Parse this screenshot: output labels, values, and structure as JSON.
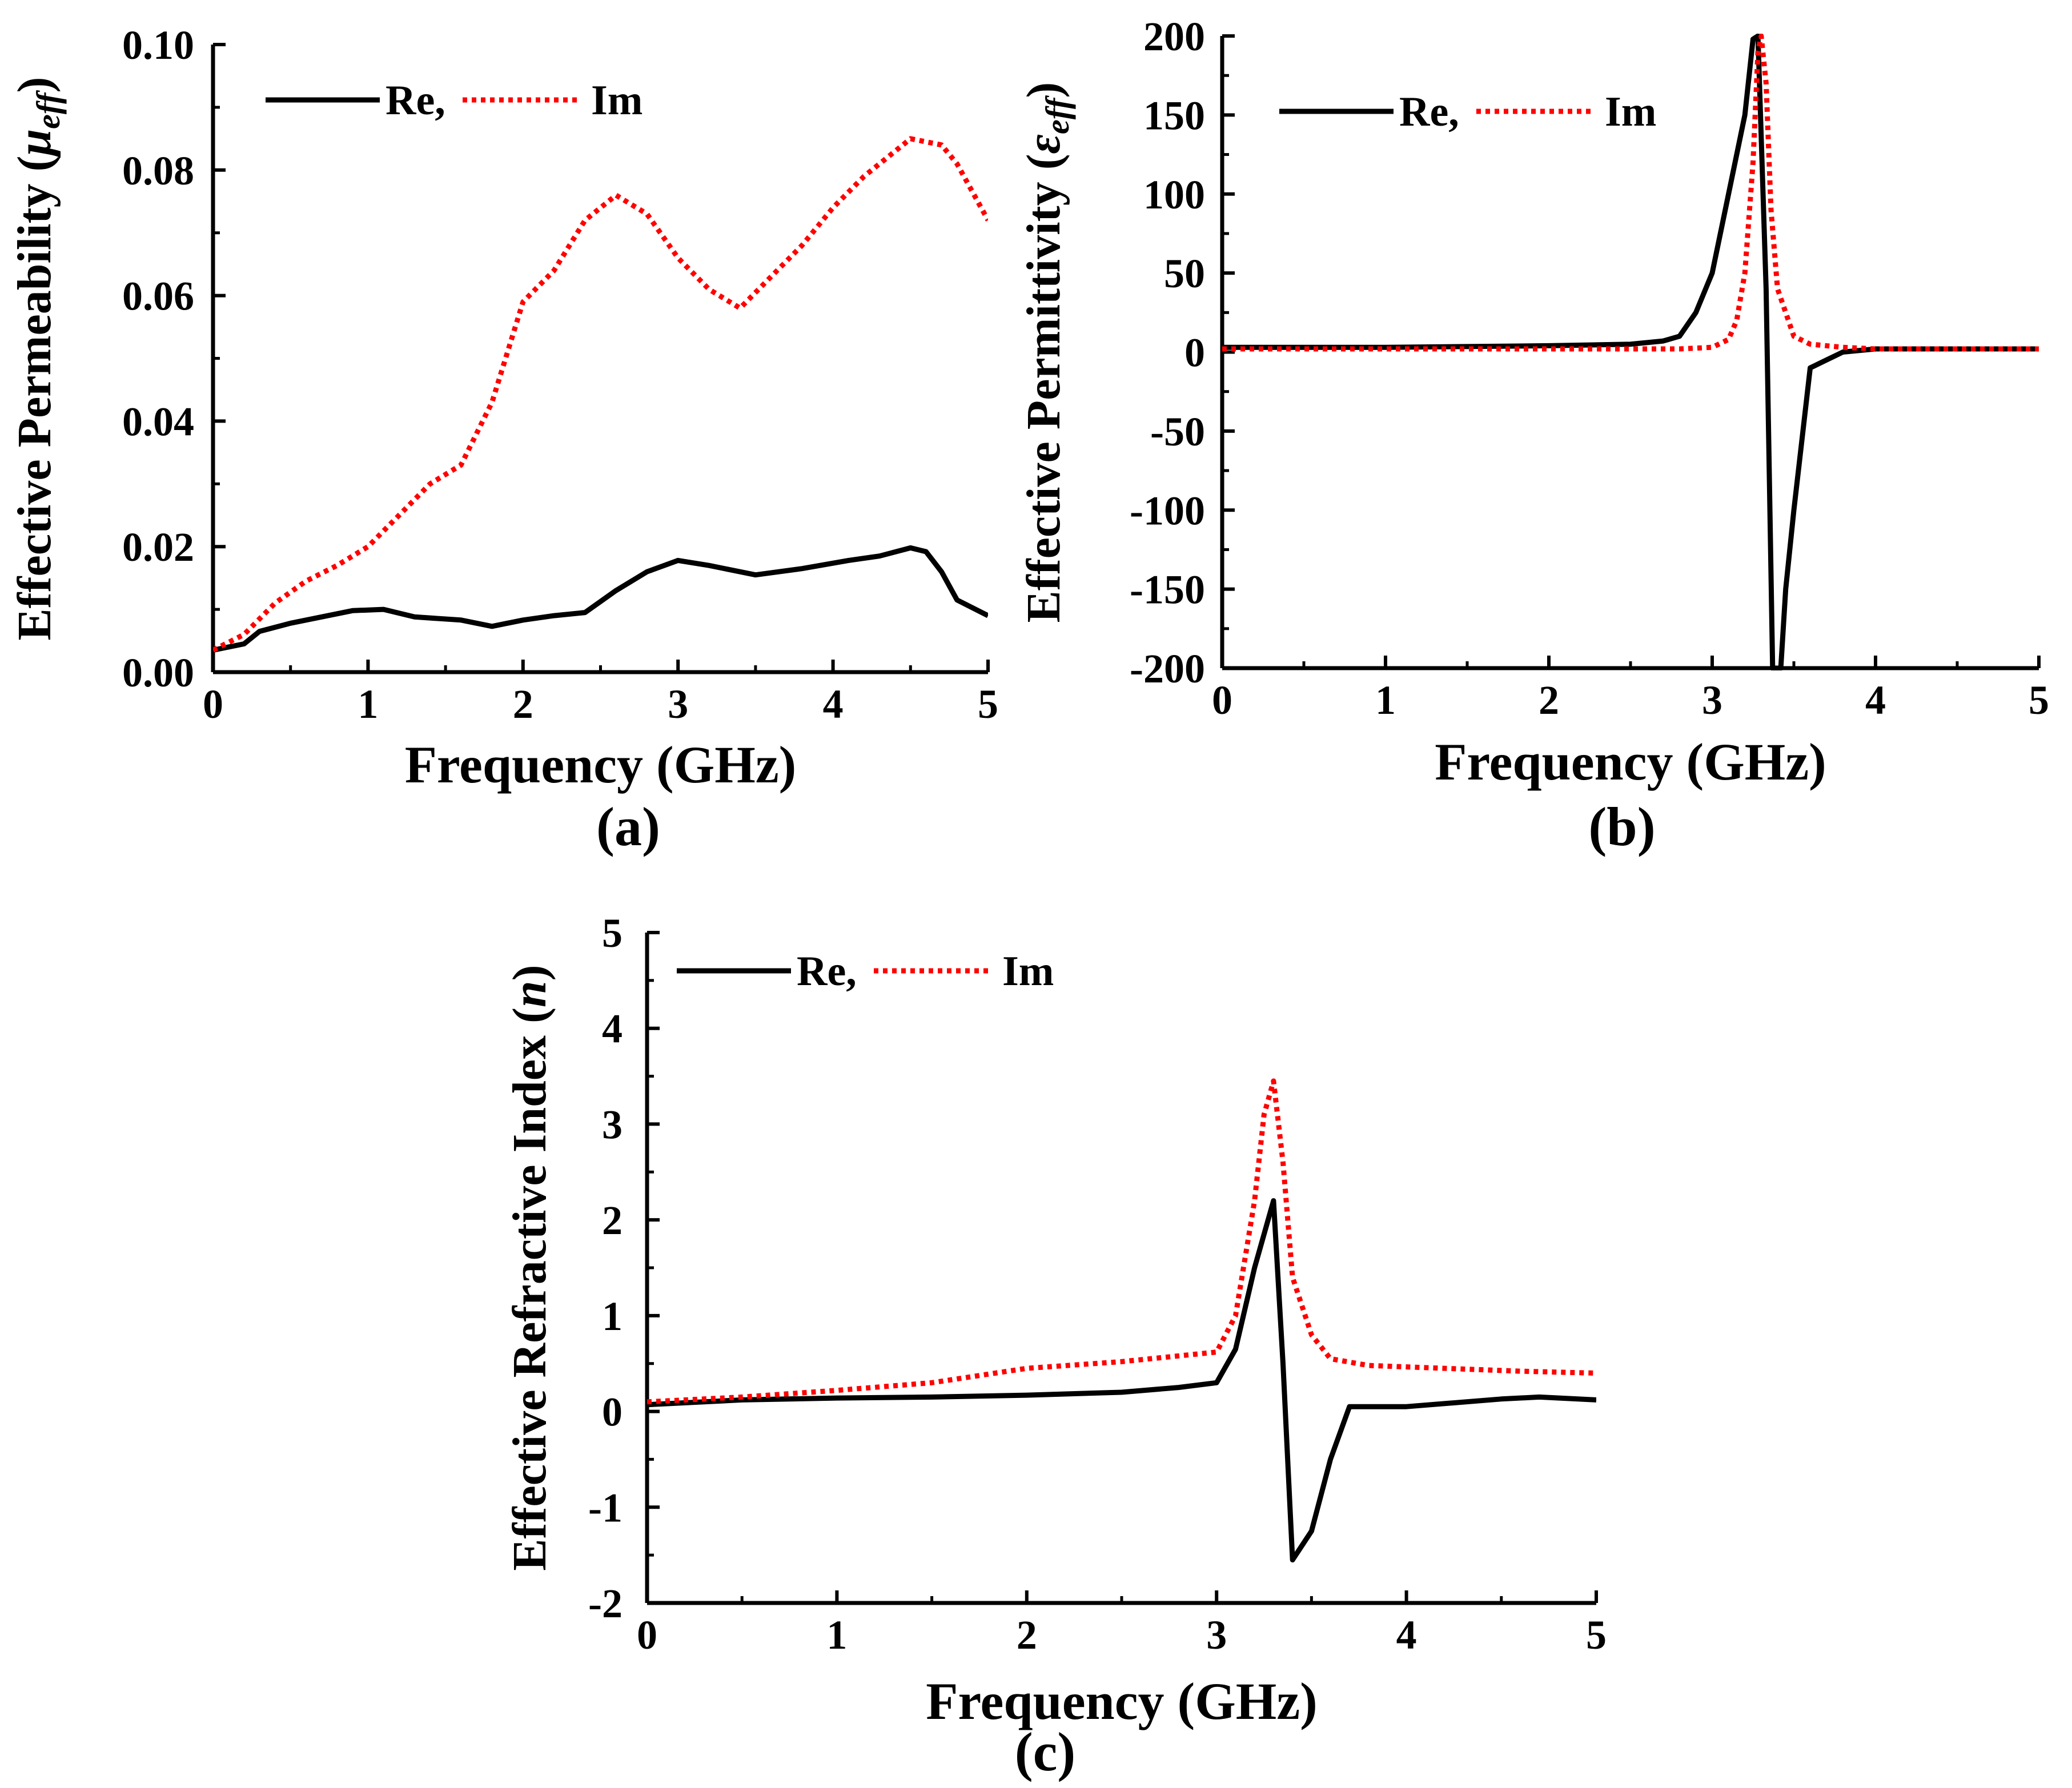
{
  "colors": {
    "re": "#000000",
    "im": "#ff0000"
  },
  "chart_data": [
    {
      "type": "line",
      "panel_label": "(a)",
      "xlabel": "Frequency (GHz)",
      "ylabel_main": "Effective Permeability (",
      "ylabel_symbol": "μ",
      "ylabel_sub": "eff",
      "ylabel_end": ")",
      "xlim": [
        0,
        5
      ],
      "ylim": [
        0,
        0.1
      ],
      "xticks": [
        0,
        1,
        2,
        3,
        4,
        5
      ],
      "xtick_labels": [
        "0",
        "1",
        "2",
        "3",
        "4",
        "5"
      ],
      "yticks": [
        0,
        0.02,
        0.04,
        0.06,
        0.08,
        0.1
      ],
      "ytick_labels": [
        "0.00",
        "0.02",
        "0.04",
        "0.06",
        "0.08",
        "0.10"
      ],
      "legend": {
        "position": "top-left",
        "entries": [
          "Re,",
          "Im"
        ]
      },
      "series": [
        {
          "name": "Re",
          "style": "solid",
          "x": [
            0,
            0.2,
            0.3,
            0.5,
            0.7,
            0.9,
            1.1,
            1.3,
            1.6,
            1.8,
            2.0,
            2.2,
            2.4,
            2.6,
            2.8,
            3.0,
            3.2,
            3.5,
            3.8,
            4.1,
            4.3,
            4.5,
            4.6,
            4.7,
            4.8,
            5.0
          ],
          "y": [
            0.0035,
            0.0045,
            0.0065,
            0.0078,
            0.0088,
            0.0098,
            0.01,
            0.0088,
            0.0083,
            0.0073,
            0.0083,
            0.009,
            0.0095,
            0.013,
            0.016,
            0.0178,
            0.017,
            0.0155,
            0.0165,
            0.0178,
            0.0185,
            0.0198,
            0.0192,
            0.016,
            0.0115,
            0.009
          ]
        },
        {
          "name": "Im",
          "style": "dotted",
          "x": [
            0,
            0.2,
            0.4,
            0.6,
            0.8,
            1.0,
            1.2,
            1.4,
            1.6,
            1.8,
            2.0,
            2.2,
            2.4,
            2.6,
            2.8,
            3.0,
            3.2,
            3.4,
            3.6,
            3.8,
            4.0,
            4.2,
            4.4,
            4.5,
            4.7,
            4.8,
            5.0
          ],
          "y": [
            0.0035,
            0.006,
            0.011,
            0.0145,
            0.017,
            0.02,
            0.025,
            0.03,
            0.033,
            0.043,
            0.059,
            0.064,
            0.072,
            0.076,
            0.073,
            0.066,
            0.061,
            0.058,
            0.063,
            0.068,
            0.074,
            0.079,
            0.083,
            0.085,
            0.084,
            0.081,
            0.072
          ]
        }
      ]
    },
    {
      "type": "line",
      "panel_label": "(b)",
      "xlabel": "Frequency (GHz)",
      "ylabel_main": "Effective Permittivity (",
      "ylabel_symbol": "ε",
      "ylabel_sub": "eff",
      "ylabel_end": ")",
      "xlim": [
        0,
        5
      ],
      "ylim": [
        -200,
        200
      ],
      "xticks": [
        0,
        1,
        2,
        3,
        4,
        5
      ],
      "xtick_labels": [
        "0",
        "1",
        "2",
        "3",
        "4",
        "5"
      ],
      "yticks": [
        -200,
        -150,
        -100,
        -50,
        0,
        50,
        100,
        150,
        200
      ],
      "ytick_labels": [
        "-200",
        "-150",
        "-100",
        "-50",
        "0",
        "50",
        "100",
        "150",
        "200"
      ],
      "legend": {
        "position": "top-left",
        "entries": [
          "Re,",
          "Im"
        ]
      },
      "series": [
        {
          "name": "Re",
          "style": "solid",
          "x": [
            0,
            1.0,
            2.0,
            2.5,
            2.7,
            2.8,
            2.9,
            3.0,
            3.1,
            3.2,
            3.25,
            3.28,
            3.33,
            3.37,
            3.4,
            3.42,
            3.45,
            3.5,
            3.6,
            3.7,
            3.8,
            4.0,
            5.0
          ],
          "y": [
            3,
            3,
            4,
            5,
            7,
            10,
            25,
            50,
            100,
            150,
            198,
            200,
            40,
            -200,
            -200,
            -200,
            -150,
            -100,
            -10,
            -5,
            0,
            2,
            2
          ]
        },
        {
          "name": "Im",
          "style": "dotted",
          "x": [
            0,
            1.0,
            2.0,
            2.8,
            3.0,
            3.1,
            3.15,
            3.2,
            3.25,
            3.28,
            3.3,
            3.33,
            3.36,
            3.4,
            3.5,
            3.6,
            3.8,
            4.0,
            5.0
          ],
          "y": [
            2,
            2,
            2,
            2,
            3,
            8,
            20,
            50,
            120,
            190,
            200,
            170,
            90,
            40,
            10,
            5,
            3,
            2,
            2
          ]
        }
      ]
    },
    {
      "type": "line",
      "panel_label": "(c)",
      "xlabel": "Frequency (GHz)",
      "ylabel_main": "Effective Refractive Index (",
      "ylabel_symbol": "n",
      "ylabel_sub": "",
      "ylabel_end": ")",
      "xlim": [
        0,
        5
      ],
      "ylim": [
        -2,
        5
      ],
      "xticks": [
        0,
        1,
        2,
        3,
        4,
        5
      ],
      "xtick_labels": [
        "0",
        "1",
        "2",
        "3",
        "4",
        "5"
      ],
      "yticks": [
        -2,
        -1,
        0,
        1,
        2,
        3,
        4,
        5
      ],
      "ytick_labels": [
        "-2",
        "-1",
        "0",
        "1",
        "2",
        "3",
        "4",
        "5"
      ],
      "legend": {
        "position": "top-left",
        "entries": [
          "Re,",
          "Im"
        ]
      },
      "series": [
        {
          "name": "Re",
          "style": "solid",
          "x": [
            0,
            0.5,
            1.0,
            1.5,
            2.0,
            2.5,
            2.8,
            3.0,
            3.1,
            3.2,
            3.3,
            3.35,
            3.4,
            3.5,
            3.6,
            3.7,
            4.0,
            4.5,
            4.7,
            5.0
          ],
          "y": [
            0.07,
            0.12,
            0.14,
            0.15,
            0.17,
            0.2,
            0.25,
            0.3,
            0.65,
            1.5,
            2.2,
            0.5,
            -1.55,
            -1.25,
            -0.5,
            0.05,
            0.05,
            0.13,
            0.15,
            0.12
          ]
        },
        {
          "name": "Im",
          "style": "dotted",
          "x": [
            0,
            0.5,
            1.0,
            1.5,
            2.0,
            2.5,
            3.0,
            3.1,
            3.2,
            3.25,
            3.3,
            3.35,
            3.4,
            3.5,
            3.6,
            3.8,
            4.2,
            4.6,
            5.0
          ],
          "y": [
            0.1,
            0.15,
            0.22,
            0.3,
            0.45,
            0.52,
            0.62,
            1.0,
            2.2,
            3.1,
            3.45,
            2.6,
            1.4,
            0.8,
            0.55,
            0.48,
            0.45,
            0.42,
            0.4
          ]
        }
      ]
    }
  ]
}
